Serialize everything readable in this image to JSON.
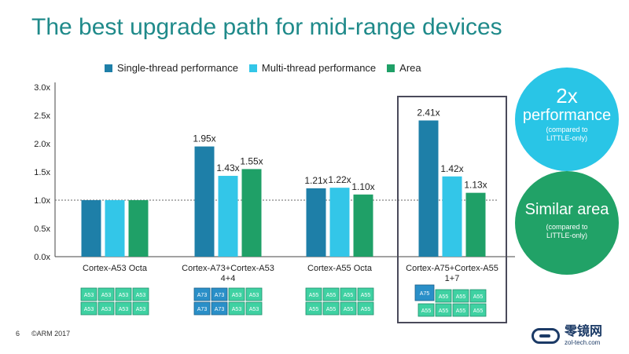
{
  "title": "The best upgrade path for mid-range devices",
  "colors": {
    "title": "#1F8A8A",
    "single": "#1E7FA8",
    "multi": "#33C6E8",
    "area": "#1FA067",
    "core_big": "#2A8FC8",
    "core_little": "#3FD1A2",
    "circle_perf": "#29C5E6",
    "circle_area": "#21A267"
  },
  "legend": [
    {
      "label": "Single-thread performance",
      "color": "#1E7FA8"
    },
    {
      "label": "Multi-thread performance",
      "color": "#33C6E8"
    },
    {
      "label": "Area",
      "color": "#1FA067"
    }
  ],
  "chart_data": {
    "type": "bar",
    "categories": [
      "Cortex-A53 Octa",
      "Cortex-A73+Cortex-A53 4+4",
      "Cortex-A55 Octa",
      "Cortex-A75+Cortex-A55 1+7"
    ],
    "category_lines": [
      [
        "Cortex-A53 Octa"
      ],
      [
        "Cortex-A73+Cortex-A53",
        "4+4"
      ],
      [
        "Cortex-A55 Octa"
      ],
      [
        "Cortex-A75+Cortex-A55",
        "1+7"
      ]
    ],
    "series": [
      {
        "name": "Single-thread performance",
        "values": [
          1.0,
          1.95,
          1.21,
          2.41
        ],
        "labels": [
          "",
          "1.95x",
          "1.21x",
          "2.41x"
        ]
      },
      {
        "name": "Multi-thread performance",
        "values": [
          1.0,
          1.43,
          1.22,
          1.42
        ],
        "labels": [
          "",
          "1.43x",
          "1.22x",
          "1.42x"
        ]
      },
      {
        "name": "Area",
        "values": [
          1.0,
          1.55,
          1.1,
          1.13
        ],
        "labels": [
          "",
          "1.55x",
          "1.10x",
          "1.13x"
        ]
      }
    ],
    "yticks": [
      "0.0x",
      "0.5x",
      "1.0x",
      "1.5x",
      "2.0x",
      "2.5x",
      "3.0x"
    ],
    "ylim": [
      0,
      3.0
    ],
    "reference_line": 1.0,
    "core_grids": [
      {
        "big": [],
        "little": [
          "A53",
          "A53",
          "A53",
          "A53",
          "A53",
          "A53",
          "A53",
          "A53"
        ]
      },
      {
        "big": [
          "A73",
          "A73",
          "A73",
          "A73"
        ],
        "little": [
          "A53",
          "A53",
          "A53",
          "A53"
        ]
      },
      {
        "big": [],
        "little": [
          "A55",
          "A55",
          "A55",
          "A55",
          "A55",
          "A55",
          "A55",
          "A55"
        ]
      },
      {
        "big": [
          "A75"
        ],
        "little": [
          "A55",
          "A55",
          "A55",
          "A55",
          "A55",
          "A55",
          "A55"
        ]
      }
    ]
  },
  "callouts": {
    "perf_big": "2x",
    "perf_mid": "performance",
    "perf_small1": "(compared to",
    "perf_small2": "LITTLE-only)",
    "area_mid1": "Similar area",
    "area_small1": "(compared to",
    "area_small2": "LITTLE-only)"
  },
  "footer": {
    "page": "6",
    "copyright": "©ARM 2017",
    "logo_text": "零镜网",
    "logo_url": "zol-tech.com"
  }
}
